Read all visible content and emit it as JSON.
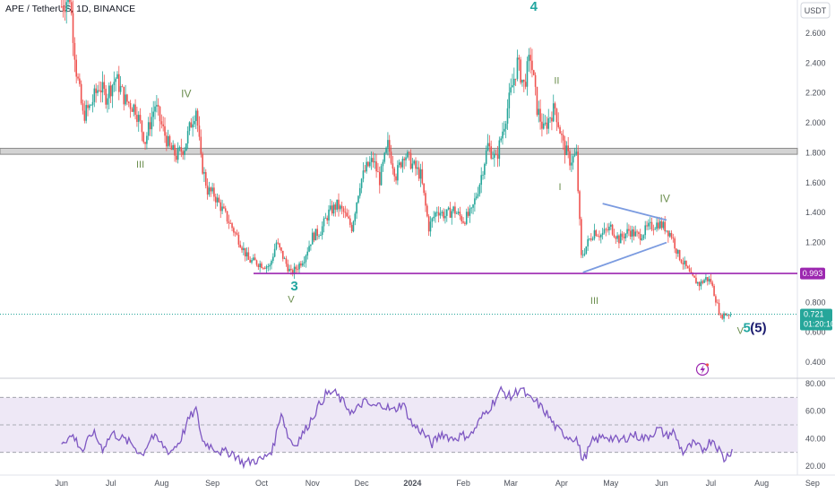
{
  "title": "APE / TetherUS, 1D, BINANCE",
  "currency_label": "USDT",
  "colors": {
    "up": "#26a69a",
    "down": "#ef5350",
    "support_line": "#9c27b0",
    "triangle": "#7b9be0",
    "rsi_line": "#7e57c2",
    "rsi_band": "#ede7f6",
    "zone": "#b0b0b0",
    "wave_green": "#6b8e4e",
    "wave_teal": "#22a6a0",
    "wave_navy": "#1a1a6e"
  },
  "chart_data": [
    {
      "type": "candlestick",
      "symbol": "APE/USDT",
      "timeframe": "1D",
      "exchange": "BINANCE",
      "x_ticks": [
        "Jun",
        "Jul",
        "Aug",
        "Sep",
        "Oct",
        "Nov",
        "Dec",
        "2024",
        "Feb",
        "Mar",
        "Apr",
        "May",
        "Jun",
        "Jul",
        "Aug",
        "Sep"
      ],
      "y_ticks": [
        "2.600",
        "2.400",
        "2.200",
        "2.000",
        "1.800",
        "1.600",
        "1.400",
        "1.200",
        "0.800",
        "0.600",
        "0.400"
      ],
      "ylim": [
        0.3,
        2.82
      ],
      "last_price": "0.721",
      "countdown": "01:20:10",
      "support_level": "0.993",
      "resistance_zone": [
        1.79,
        1.83
      ],
      "path": [
        [
          "2023-06-01",
          2.78
        ],
        [
          "2023-06-06",
          2.85
        ],
        [
          "2023-06-10",
          2.35
        ],
        [
          "2023-06-14",
          2.05
        ],
        [
          "2023-06-18",
          2.1
        ],
        [
          "2023-06-24",
          2.25
        ],
        [
          "2023-06-28",
          2.18
        ],
        [
          "2023-07-04",
          2.3
        ],
        [
          "2023-07-10",
          2.15
        ],
        [
          "2023-07-16",
          2.1
        ],
        [
          "2023-07-22",
          1.88
        ],
        [
          "2023-07-28",
          2.12
        ],
        [
          "2023-08-02",
          1.95
        ],
        [
          "2023-08-06",
          1.83
        ],
        [
          "2023-08-10",
          1.78
        ],
        [
          "2023-08-15",
          1.84
        ],
        [
          "2023-08-19",
          2.0
        ],
        [
          "2023-08-22",
          2.1
        ],
        [
          "2023-08-25",
          1.75
        ],
        [
          "2023-08-29",
          1.55
        ],
        [
          "2023-09-02",
          1.52
        ],
        [
          "2023-09-08",
          1.4
        ],
        [
          "2023-09-13",
          1.3
        ],
        [
          "2023-09-18",
          1.2
        ],
        [
          "2023-09-23",
          1.08
        ],
        [
          "2023-09-27",
          1.07
        ],
        [
          "2023-10-02",
          1.05
        ],
        [
          "2023-10-06",
          1.04
        ],
        [
          "2023-10-10",
          1.2
        ],
        [
          "2023-10-15",
          1.08
        ],
        [
          "2023-10-19",
          0.99
        ],
        [
          "2023-10-23",
          1.04
        ],
        [
          "2023-10-27",
          1.1
        ],
        [
          "2023-11-01",
          1.24
        ],
        [
          "2023-11-06",
          1.28
        ],
        [
          "2023-11-11",
          1.4
        ],
        [
          "2023-11-16",
          1.45
        ],
        [
          "2023-11-20",
          1.4
        ],
        [
          "2023-11-25",
          1.3
        ],
        [
          "2023-11-30",
          1.6
        ],
        [
          "2023-12-04",
          1.7
        ],
        [
          "2023-12-08",
          1.75
        ],
        [
          "2023-12-12",
          1.62
        ],
        [
          "2023-12-17",
          1.85
        ],
        [
          "2023-12-22",
          1.65
        ],
        [
          "2023-12-27",
          1.8
        ],
        [
          "2024-01-01",
          1.72
        ],
        [
          "2024-01-06",
          1.65
        ],
        [
          "2024-01-11",
          1.3
        ],
        [
          "2024-01-16",
          1.42
        ],
        [
          "2024-01-21",
          1.38
        ],
        [
          "2024-01-26",
          1.42
        ],
        [
          "2024-02-01",
          1.35
        ],
        [
          "2024-02-06",
          1.4
        ],
        [
          "2024-02-11",
          1.6
        ],
        [
          "2024-02-16",
          1.85
        ],
        [
          "2024-02-21",
          1.75
        ],
        [
          "2024-02-26",
          2.0
        ],
        [
          "2024-03-01",
          2.2
        ],
        [
          "2024-03-05",
          2.4
        ],
        [
          "2024-03-09",
          2.25
        ],
        [
          "2024-03-13",
          2.45
        ],
        [
          "2024-03-17",
          2.1
        ],
        [
          "2024-03-21",
          1.95
        ],
        [
          "2024-03-25",
          2.05
        ],
        [
          "2024-03-28",
          2.1
        ],
        [
          "2024-04-02",
          1.85
        ],
        [
          "2024-04-06",
          1.75
        ],
        [
          "2024-04-10",
          1.78
        ],
        [
          "2024-04-13",
          1.1
        ],
        [
          "2024-04-17",
          1.2
        ],
        [
          "2024-04-21",
          1.28
        ],
        [
          "2024-04-25",
          1.25
        ],
        [
          "2024-05-01",
          1.3
        ],
        [
          "2024-05-06",
          1.22
        ],
        [
          "2024-05-12",
          1.28
        ],
        [
          "2024-05-18",
          1.24
        ],
        [
          "2024-05-24",
          1.3
        ],
        [
          "2024-05-30",
          1.33
        ],
        [
          "2024-06-03",
          1.3
        ],
        [
          "2024-06-07",
          1.25
        ],
        [
          "2024-06-11",
          1.12
        ],
        [
          "2024-06-15",
          1.05
        ],
        [
          "2024-06-19",
          0.97
        ],
        [
          "2024-06-24",
          0.92
        ],
        [
          "2024-06-28",
          0.96
        ],
        [
          "2024-07-01",
          0.94
        ],
        [
          "2024-07-04",
          0.82
        ],
        [
          "2024-07-07",
          0.7
        ],
        [
          "2024-07-09",
          0.72
        ],
        [
          "2024-07-13",
          0.721
        ]
      ],
      "annotations": [
        {
          "text": "IV",
          "x": "2023-08-16",
          "y": 2.17,
          "color": "wave_green",
          "size": 12
        },
        {
          "text": "III",
          "x": "2023-07-19",
          "y": 1.7,
          "color": "wave_green",
          "size": 11
        },
        {
          "text": "3",
          "x": "2023-10-21",
          "y": 0.88,
          "color": "wave_teal",
          "size": 15,
          "bold": true
        },
        {
          "text": "V",
          "x": "2023-10-19",
          "y": 0.8,
          "color": "wave_green",
          "size": 11
        },
        {
          "text": "4",
          "x": "2024-03-15",
          "y": 2.75,
          "color": "wave_teal",
          "size": 15,
          "bold": true
        },
        {
          "text": "II",
          "x": "2024-03-29",
          "y": 2.26,
          "color": "wave_green",
          "size": 11
        },
        {
          "text": "I",
          "x": "2024-03-31",
          "y": 1.55,
          "color": "wave_green",
          "size": 11
        },
        {
          "text": "IV",
          "x": "2024-06-03",
          "y": 1.47,
          "color": "wave_green",
          "size": 12
        },
        {
          "text": "III",
          "x": "2024-04-21",
          "y": 0.79,
          "color": "wave_green",
          "size": 11
        },
        {
          "text": "V",
          "x": "2024-07-19",
          "y": 0.59,
          "color": "wave_green",
          "size": 11
        },
        {
          "text": "5",
          "x": "2024-07-23",
          "y": 0.6,
          "color": "wave_teal",
          "size": 15,
          "bold": true
        },
        {
          "text": "(5)",
          "x": "2024-07-30",
          "y": 0.6,
          "color": "wave_navy",
          "size": 15,
          "bold": true
        }
      ],
      "triangle": [
        [
          "2024-04-14",
          1.0
        ],
        [
          "2024-04-26",
          1.46
        ],
        [
          "2024-06-04",
          1.35
        ],
        [
          "2024-06-04",
          1.2
        ]
      ]
    },
    {
      "type": "line",
      "name": "RSI",
      "y_ticks": [
        "80.00",
        "60.00",
        "40.00",
        "20.00"
      ],
      "ylim": [
        16,
        84
      ],
      "levels": [
        70,
        50,
        30
      ],
      "path": [
        [
          "2023-06-01",
          38
        ],
        [
          "2023-06-08",
          42
        ],
        [
          "2023-06-14",
          31
        ],
        [
          "2023-06-20",
          45
        ],
        [
          "2023-06-26",
          33
        ],
        [
          "2023-07-02",
          44
        ],
        [
          "2023-07-08",
          40
        ],
        [
          "2023-07-14",
          36
        ],
        [
          "2023-07-20",
          28
        ],
        [
          "2023-07-26",
          42
        ],
        [
          "2023-08-01",
          36
        ],
        [
          "2023-08-06",
          30
        ],
        [
          "2023-08-12",
          38
        ],
        [
          "2023-08-18",
          55
        ],
        [
          "2023-08-22",
          61
        ],
        [
          "2023-08-26",
          38
        ],
        [
          "2023-09-01",
          34
        ],
        [
          "2023-09-07",
          30
        ],
        [
          "2023-09-13",
          30
        ],
        [
          "2023-09-20",
          22
        ],
        [
          "2023-09-26",
          24
        ],
        [
          "2023-10-02",
          25
        ],
        [
          "2023-10-08",
          33
        ],
        [
          "2023-10-13",
          60
        ],
        [
          "2023-10-17",
          42
        ],
        [
          "2023-10-21",
          35
        ],
        [
          "2023-10-27",
          45
        ],
        [
          "2023-11-03",
          60
        ],
        [
          "2023-11-09",
          72
        ],
        [
          "2023-11-14",
          74
        ],
        [
          "2023-11-20",
          66
        ],
        [
          "2023-11-26",
          58
        ],
        [
          "2023-12-02",
          67
        ],
        [
          "2023-12-08",
          63
        ],
        [
          "2023-12-14",
          65
        ],
        [
          "2023-12-20",
          60
        ],
        [
          "2023-12-26",
          66
        ],
        [
          "2024-01-01",
          50
        ],
        [
          "2024-01-07",
          45
        ],
        [
          "2024-01-13",
          36
        ],
        [
          "2024-01-19",
          44
        ],
        [
          "2024-01-25",
          40
        ],
        [
          "2024-01-31",
          42
        ],
        [
          "2024-02-06",
          43
        ],
        [
          "2024-02-12",
          55
        ],
        [
          "2024-02-18",
          64
        ],
        [
          "2024-02-24",
          75
        ],
        [
          "2024-03-01",
          70
        ],
        [
          "2024-03-07",
          77
        ],
        [
          "2024-03-12",
          69
        ],
        [
          "2024-03-17",
          66
        ],
        [
          "2024-03-23",
          58
        ],
        [
          "2024-03-29",
          47
        ],
        [
          "2024-04-04",
          42
        ],
        [
          "2024-04-10",
          40
        ],
        [
          "2024-04-14",
          24
        ],
        [
          "2024-04-20",
          38
        ],
        [
          "2024-04-28",
          42
        ],
        [
          "2024-05-06",
          38
        ],
        [
          "2024-05-14",
          43
        ],
        [
          "2024-05-22",
          40
        ],
        [
          "2024-05-30",
          47
        ],
        [
          "2024-06-04",
          42
        ],
        [
          "2024-06-08",
          45
        ],
        [
          "2024-06-14",
          30
        ],
        [
          "2024-06-20",
          36
        ],
        [
          "2024-06-26",
          32
        ],
        [
          "2024-07-02",
          40
        ],
        [
          "2024-07-07",
          30
        ],
        [
          "2024-07-09",
          25
        ],
        [
          "2024-07-14",
          32
        ]
      ]
    }
  ]
}
